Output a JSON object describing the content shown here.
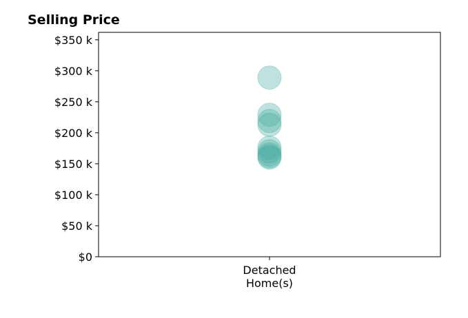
{
  "chart_data": {
    "type": "scatter",
    "title": "Selling Price",
    "xlabel": "",
    "ylabel": "",
    "categories": [
      "Detached\nHome(s)"
    ],
    "y_ticks": [
      0,
      50000,
      100000,
      150000,
      200000,
      250000,
      300000,
      350000
    ],
    "y_tick_labels": [
      "$0",
      "$50 k",
      "$100 k",
      "$150 k",
      "$200 k",
      "$250 k",
      "$300 k",
      "$350 k"
    ],
    "ylim": [
      0,
      362000
    ],
    "grid": false,
    "legend": "none",
    "series": [
      {
        "category": "Detached\nHome(s)",
        "values": [
          289000,
          229000,
          219000,
          213000,
          176000,
          170000,
          165000,
          162000,
          160000
        ]
      }
    ],
    "colors": {
      "marker_fill": "#48aca0",
      "marker_edge": "#48aca0",
      "axis": "#000000",
      "background": "#ffffff"
    }
  }
}
